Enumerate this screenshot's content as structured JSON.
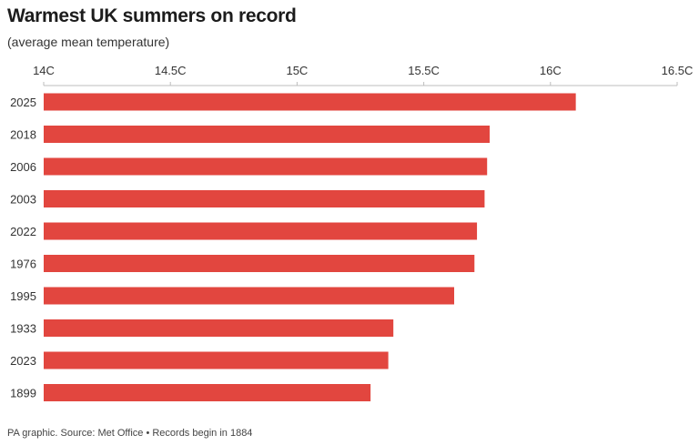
{
  "chart_data": {
    "type": "bar",
    "orientation": "horizontal",
    "title": "Warmest UK summers on record",
    "subtitle": "(average mean temperature)",
    "categories": [
      "2025",
      "2018",
      "2006",
      "2003",
      "2022",
      "1976",
      "1995",
      "1933",
      "2023",
      "1899"
    ],
    "values": [
      16.1,
      15.76,
      15.75,
      15.74,
      15.71,
      15.7,
      15.62,
      15.38,
      15.36,
      15.29
    ],
    "xlim": [
      14,
      16.5
    ],
    "xticks": [
      14,
      14.5,
      15,
      15.5,
      16,
      16.5
    ],
    "xtick_labels": [
      "14C",
      "14.5C",
      "15C",
      "15.5C",
      "16C",
      "16.5C"
    ],
    "bar_color": "#e2463f",
    "xlabel": "",
    "ylabel": "",
    "grid": false
  },
  "footer": "PA graphic. Source: Met Office • Records begin in 1884"
}
